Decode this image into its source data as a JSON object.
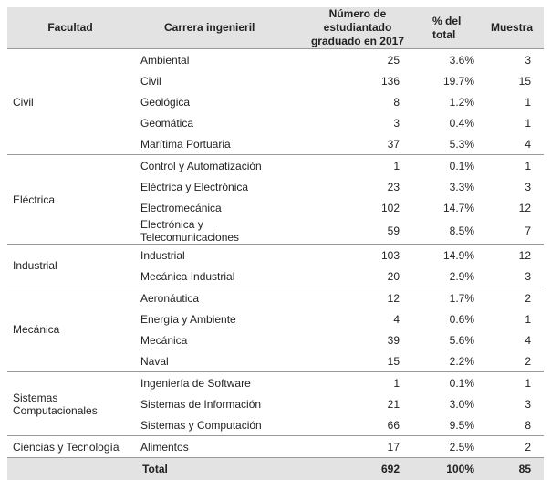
{
  "headers": {
    "facultad": "Facultad",
    "carrera": "Carrera ingenieril",
    "numero": "Número de estudiantado graduado en 2017",
    "porcentaje": "% del total",
    "muestra": "Muestra"
  },
  "groups": [
    {
      "facultad": "Civil",
      "rows": [
        {
          "carrera": "Ambiental",
          "numero": "25",
          "porcentaje": "3.6%",
          "muestra": "3"
        },
        {
          "carrera": "Civil",
          "numero": "136",
          "porcentaje": "19.7%",
          "muestra": "15"
        },
        {
          "carrera": "Geológica",
          "numero": "8",
          "porcentaje": "1.2%",
          "muestra": "1"
        },
        {
          "carrera": "Geomática",
          "numero": "3",
          "porcentaje": "0.4%",
          "muestra": "1"
        },
        {
          "carrera": "Marítima Portuaria",
          "numero": "37",
          "porcentaje": "5.3%",
          "muestra": "4"
        }
      ]
    },
    {
      "facultad": "Eléctrica",
      "rows": [
        {
          "carrera": "Control y Automatización",
          "numero": "1",
          "porcentaje": "0.1%",
          "muestra": "1"
        },
        {
          "carrera": "Eléctrica y Electrónica",
          "numero": "23",
          "porcentaje": "3.3%",
          "muestra": "3"
        },
        {
          "carrera": "Electromecánica",
          "numero": "102",
          "porcentaje": "14.7%",
          "muestra": "12"
        },
        {
          "carrera": "Electrónica y Telecomunicaciones",
          "numero": "59",
          "porcentaje": "8.5%",
          "muestra": "7"
        }
      ]
    },
    {
      "facultad": "Industrial",
      "rows": [
        {
          "carrera": "Industrial",
          "numero": "103",
          "porcentaje": "14.9%",
          "muestra": "12"
        },
        {
          "carrera": "Mecánica Industrial",
          "numero": "20",
          "porcentaje": "2.9%",
          "muestra": "3"
        }
      ]
    },
    {
      "facultad": "Mecánica",
      "rows": [
        {
          "carrera": "Aeronáutica",
          "numero": "12",
          "porcentaje": "1.7%",
          "muestra": "2"
        },
        {
          "carrera": "Energía y Ambiente",
          "numero": "4",
          "porcentaje": "0.6%",
          "muestra": "1"
        },
        {
          "carrera": "Mecánica",
          "numero": "39",
          "porcentaje": "5.6%",
          "muestra": "4"
        },
        {
          "carrera": "Naval",
          "numero": "15",
          "porcentaje": "2.2%",
          "muestra": "2"
        }
      ]
    },
    {
      "facultad": "Sistemas Computacionales",
      "rows": [
        {
          "carrera": "Ingeniería de Software",
          "numero": "1",
          "porcentaje": "0.1%",
          "muestra": "1"
        },
        {
          "carrera": "Sistemas de Información",
          "numero": "21",
          "porcentaje": "3.0%",
          "muestra": "3"
        },
        {
          "carrera": "Sistemas y Computación",
          "numero": "66",
          "porcentaje": "9.5%",
          "muestra": "8"
        }
      ]
    },
    {
      "facultad": "Ciencias y Tecnología",
      "rows": [
        {
          "carrera": "Alimentos",
          "numero": "17",
          "porcentaje": "2.5%",
          "muestra": "2"
        }
      ]
    }
  ],
  "total": {
    "label": "Total",
    "numero": "692",
    "porcentaje": "100%",
    "muestra": "85"
  }
}
